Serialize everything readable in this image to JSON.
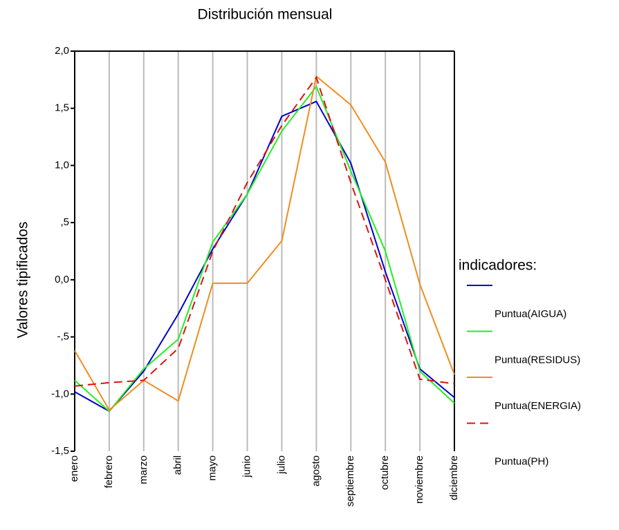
{
  "chart_data": {
    "type": "line",
    "title": "Distribución mensual",
    "y_label": "Valores tipificados",
    "categories": [
      "enero",
      "febrero",
      "marzo",
      "abril",
      "mayo",
      "junio",
      "julio",
      "agosto",
      "septiembre",
      "octubre",
      "noviembre",
      "diciembre"
    ],
    "series": [
      {
        "name": "Puntua(AIGUA)",
        "color": "#0000cc",
        "dash": "solid",
        "values": [
          -0.98,
          -1.15,
          -0.8,
          -0.3,
          0.27,
          0.75,
          1.43,
          1.56,
          1.02,
          0.07,
          -0.78,
          -1.03
        ]
      },
      {
        "name": "Puntua(RESIDUS)",
        "color": "#22ee22",
        "dash": "solid",
        "values": [
          -0.88,
          -1.15,
          -0.78,
          -0.52,
          0.33,
          0.75,
          1.3,
          1.69,
          0.95,
          0.25,
          -0.8,
          -1.08
        ]
      },
      {
        "name": "Puntua(ENERGIA)",
        "color": "#f08c1e",
        "dash": "solid",
        "values": [
          -0.62,
          -1.14,
          -0.88,
          -1.06,
          -0.03,
          -0.03,
          0.34,
          1.78,
          1.53,
          1.03,
          -0.04,
          -0.83
        ]
      },
      {
        "name": "Puntua(PH)",
        "color": "#dd1111",
        "dash": "dashed",
        "values": [
          -0.93,
          -0.9,
          -0.88,
          -0.6,
          0.25,
          0.85,
          1.35,
          1.77,
          0.85,
          0.0,
          -0.87,
          -0.91
        ]
      }
    ],
    "legend_title": "indicadores:",
    "legend_position": "right",
    "ylim": [
      -1.5,
      2.0
    ],
    "yticks": [
      {
        "value": 2.0,
        "label": "2,0"
      },
      {
        "value": 1.5,
        "label": "1,5"
      },
      {
        "value": 1.0,
        "label": "1,0"
      },
      {
        "value": 0.5,
        "label": ",5"
      },
      {
        "value": 0.0,
        "label": "0,0"
      },
      {
        "value": -0.5,
        "label": "-,5"
      },
      {
        "value": -1.0,
        "label": "-1,0"
      },
      {
        "value": -1.5,
        "label": "-1,5"
      }
    ],
    "grid": true
  }
}
